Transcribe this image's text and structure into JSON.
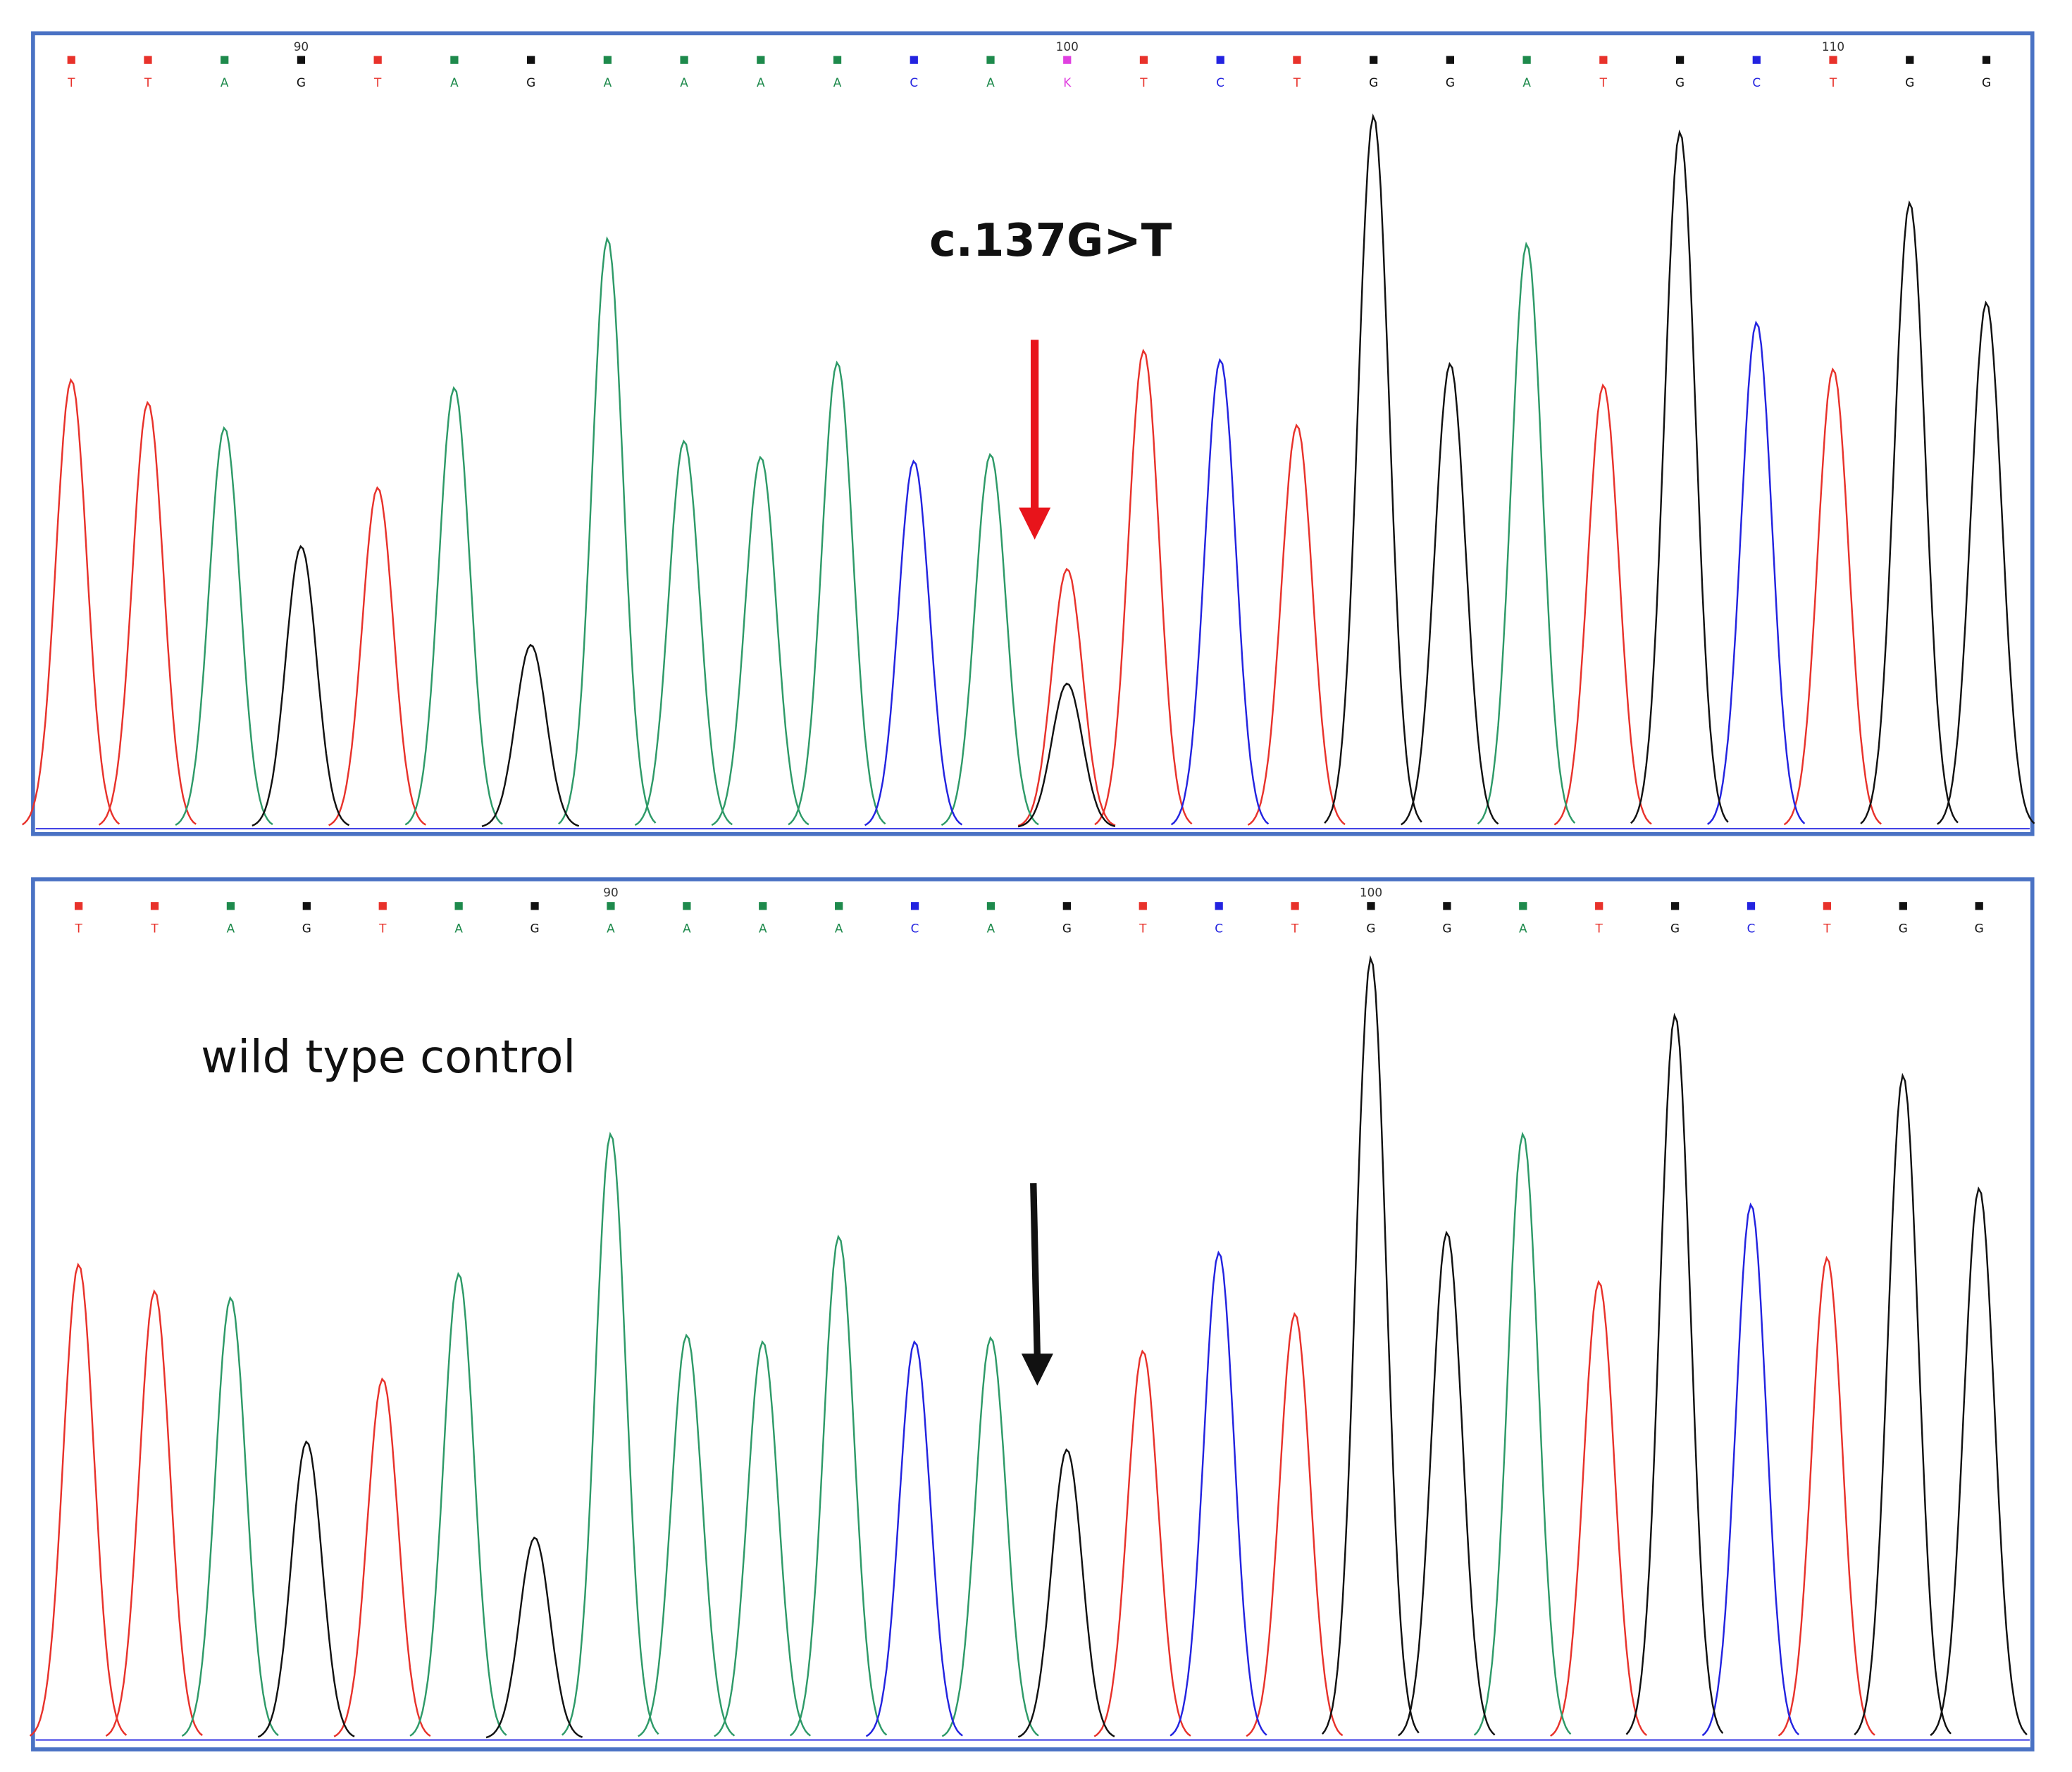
{
  "chart_data": [
    {
      "type": "chromatogram",
      "x": [
        87,
        88,
        89,
        90,
        91,
        92,
        93,
        94,
        95,
        96,
        97,
        98,
        99,
        100,
        101,
        102,
        103,
        104,
        105,
        106,
        107,
        108,
        109,
        110,
        111,
        112
      ],
      "xlim": [
        86.5,
        112.6
      ],
      "xticks": [
        90,
        100,
        110
      ],
      "calls": [
        "T",
        "T",
        "A",
        "G",
        "T",
        "A",
        "G",
        "A",
        "A",
        "A",
        "A",
        "C",
        "A",
        "K",
        "T",
        "C",
        "T",
        "G",
        "G",
        "A",
        "T",
        "G",
        "C",
        "T",
        "G",
        "G"
      ],
      "call_colors": [
        "#e8322b",
        "#e8322b",
        "#1e8a4c",
        "#111111",
        "#e8322b",
        "#1e8a4c",
        "#111111",
        "#1e8a4c",
        "#1e8a4c",
        "#1e8a4c",
        "#1e8a4c",
        "#2323e0",
        "#1e8a4c",
        "#e040e0",
        "#e8322b",
        "#2323e0",
        "#e8322b",
        "#111111",
        "#111111",
        "#1e8a4c",
        "#e8322b",
        "#111111",
        "#2323e0",
        "#e8322b",
        "#111111",
        "#111111"
      ],
      "series": [
        {
          "color": "#e8322b",
          "values": [
            336,
            319,
            null,
            null,
            255,
            null,
            null,
            null,
            null,
            null,
            null,
            null,
            null,
            194,
            358,
            null,
            302,
            null,
            null,
            null,
            332,
            null,
            null,
            344,
            null,
            null
          ]
        },
        {
          "color": "#2e9a68",
          "values": [
            null,
            null,
            300,
            null,
            null,
            330,
            null,
            442,
            290,
            278,
            349,
            null,
            280,
            null,
            null,
            null,
            null,
            null,
            null,
            438,
            null,
            null,
            null,
            null,
            null,
            null
          ]
        },
        {
          "color": "#2323e0",
          "values": [
            null,
            null,
            null,
            null,
            null,
            null,
            null,
            null,
            null,
            null,
            null,
            275,
            null,
            null,
            null,
            351,
            null,
            null,
            null,
            null,
            null,
            null,
            379,
            null,
            null,
            null
          ]
        },
        {
          "color": "#111111",
          "values": [
            null,
            null,
            null,
            211,
            null,
            null,
            137,
            null,
            null,
            null,
            null,
            null,
            null,
            108,
            null,
            null,
            null,
            534,
            348,
            null,
            null,
            522,
            null,
            null,
            469,
            394
          ]
        }
      ],
      "annotation": "c.137G>T",
      "arrow_color": "#e8141b"
    },
    {
      "type": "chromatogram",
      "x": [
        83,
        84,
        85,
        86,
        87,
        88,
        89,
        90,
        91,
        92,
        93,
        94,
        95,
        96,
        97,
        98,
        99,
        100,
        101,
        102,
        103,
        104,
        105,
        106,
        107,
        108
      ],
      "xlim": [
        82.4,
        108.7
      ],
      "xticks": [
        90,
        100
      ],
      "calls": [
        "T",
        "T",
        "A",
        "G",
        "T",
        "A",
        "G",
        "A",
        "A",
        "A",
        "A",
        "C",
        "A",
        "G",
        "T",
        "C",
        "T",
        "G",
        "G",
        "A",
        "T",
        "G",
        "C",
        "T",
        "G",
        "G"
      ],
      "call_colors": [
        "#e8322b",
        "#e8322b",
        "#1e8a4c",
        "#111111",
        "#e8322b",
        "#1e8a4c",
        "#111111",
        "#1e8a4c",
        "#1e8a4c",
        "#1e8a4c",
        "#1e8a4c",
        "#2323e0",
        "#1e8a4c",
        "#111111",
        "#e8322b",
        "#2323e0",
        "#e8322b",
        "#111111",
        "#111111",
        "#1e8a4c",
        "#e8322b",
        "#111111",
        "#2323e0",
        "#e8322b",
        "#111111",
        "#111111"
      ],
      "series": [
        {
          "color": "#e8322b",
          "values": [
            356,
            336,
            null,
            null,
            270,
            null,
            null,
            null,
            null,
            null,
            null,
            null,
            null,
            null,
            291,
            null,
            319,
            null,
            null,
            null,
            343,
            null,
            null,
            361,
            null,
            null
          ]
        },
        {
          "color": "#2e9a68",
          "values": [
            null,
            null,
            331,
            null,
            null,
            349,
            null,
            454,
            303,
            298,
            377,
            null,
            301,
            null,
            null,
            null,
            null,
            null,
            null,
            454,
            null,
            null,
            null,
            null,
            null,
            null
          ]
        },
        {
          "color": "#2323e0",
          "values": [
            null,
            null,
            null,
            null,
            null,
            null,
            null,
            null,
            null,
            null,
            null,
            298,
            null,
            null,
            null,
            365,
            null,
            null,
            null,
            null,
            null,
            null,
            401,
            null,
            null,
            null
          ]
        },
        {
          "color": "#111111",
          "values": [
            null,
            null,
            null,
            223,
            null,
            null,
            151,
            null,
            null,
            null,
            null,
            null,
            null,
            217,
            null,
            null,
            null,
            586,
            380,
            null,
            null,
            543,
            null,
            null,
            498,
            413
          ]
        }
      ],
      "annotation": "wild type control",
      "arrow_color": "#111111"
    }
  ]
}
